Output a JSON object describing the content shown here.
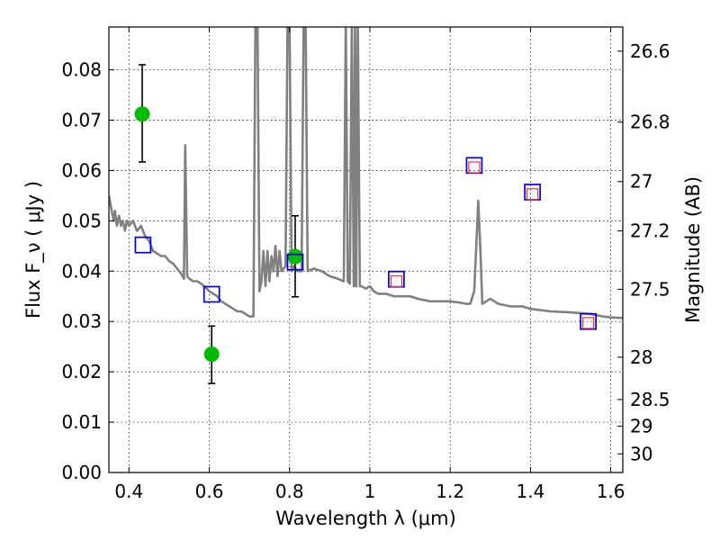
{
  "chart_data": {
    "type": "scatter",
    "xlabel": "Wavelength  λ (μm)",
    "ylabel": "Flux  F_ν  ( μJy )",
    "y2label": "Magnitude (AB)",
    "xlim": [
      0.35,
      1.63
    ],
    "ylim": [
      0.0,
      0.0885
    ],
    "grid": true,
    "x_ticks": [
      {
        "value": 0.4,
        "label": "0.4"
      },
      {
        "value": 0.6,
        "label": "0.6"
      },
      {
        "value": 0.8,
        "label": "0.8"
      },
      {
        "value": 1.0,
        "label": "1"
      },
      {
        "value": 1.2,
        "label": "1.2"
      },
      {
        "value": 1.4,
        "label": "1.4"
      },
      {
        "value": 1.6,
        "label": "1.6"
      }
    ],
    "y_ticks": [
      {
        "value": 0.0,
        "label": "0.00"
      },
      {
        "value": 0.01,
        "label": "0.01"
      },
      {
        "value": 0.02,
        "label": "0.02"
      },
      {
        "value": 0.03,
        "label": "0.03"
      },
      {
        "value": 0.04,
        "label": "0.04"
      },
      {
        "value": 0.05,
        "label": "0.05"
      },
      {
        "value": 0.06,
        "label": "0.06"
      },
      {
        "value": 0.07,
        "label": "0.07"
      },
      {
        "value": 0.08,
        "label": "0.08"
      }
    ],
    "y2_ticks": [
      {
        "flux": 0.0837,
        "label": "26.6"
      },
      {
        "flux": 0.0696,
        "label": "26.8"
      },
      {
        "flux": 0.0578,
        "label": "27"
      },
      {
        "flux": 0.048,
        "label": "27.2"
      },
      {
        "flux": 0.0364,
        "label": "27.5"
      },
      {
        "flux": 0.0229,
        "label": "28"
      },
      {
        "flux": 0.0145,
        "label": "28.5"
      },
      {
        "flux": 0.0092,
        "label": "29"
      },
      {
        "flux": 0.0037,
        "label": "30"
      }
    ],
    "spectrum": {
      "color": "#808080",
      "points": [
        [
          0.35,
          0.055
        ],
        [
          0.357,
          0.052
        ],
        [
          0.362,
          0.05
        ],
        [
          0.365,
          0.052
        ],
        [
          0.37,
          0.049
        ],
        [
          0.375,
          0.051
        ],
        [
          0.38,
          0.049
        ],
        [
          0.385,
          0.05
        ],
        [
          0.39,
          0.048
        ],
        [
          0.395,
          0.05
        ],
        [
          0.4,
          0.049
        ],
        [
          0.41,
          0.05
        ],
        [
          0.42,
          0.048
        ],
        [
          0.43,
          0.049
        ],
        [
          0.44,
          0.047
        ],
        [
          0.45,
          0.046
        ],
        [
          0.46,
          0.044
        ],
        [
          0.47,
          0.0435
        ],
        [
          0.48,
          0.043
        ],
        [
          0.49,
          0.043
        ],
        [
          0.5,
          0.042
        ],
        [
          0.51,
          0.0415
        ],
        [
          0.52,
          0.0405
        ],
        [
          0.53,
          0.0395
        ],
        [
          0.537,
          0.0385
        ],
        [
          0.54,
          0.065
        ],
        [
          0.545,
          0.039
        ],
        [
          0.55,
          0.0385
        ],
        [
          0.56,
          0.038
        ],
        [
          0.57,
          0.038
        ],
        [
          0.58,
          0.0375
        ],
        [
          0.59,
          0.0368
        ],
        [
          0.6,
          0.036
        ],
        [
          0.61,
          0.0355
        ],
        [
          0.62,
          0.035
        ],
        [
          0.63,
          0.034
        ],
        [
          0.64,
          0.0335
        ],
        [
          0.65,
          0.033
        ],
        [
          0.66,
          0.0325
        ],
        [
          0.67,
          0.032
        ],
        [
          0.68,
          0.032
        ],
        [
          0.69,
          0.0315
        ],
        [
          0.7,
          0.031
        ],
        [
          0.71,
          0.031
        ],
        [
          0.715,
          0.09
        ],
        [
          0.72,
          0.09
        ],
        [
          0.725,
          0.036
        ],
        [
          0.73,
          0.038
        ],
        [
          0.735,
          0.044
        ],
        [
          0.74,
          0.037
        ],
        [
          0.745,
          0.044
        ],
        [
          0.75,
          0.038
        ],
        [
          0.755,
          0.043
        ],
        [
          0.76,
          0.04
        ],
        [
          0.765,
          0.045
        ],
        [
          0.77,
          0.039
        ],
        [
          0.775,
          0.044
        ],
        [
          0.78,
          0.04
        ],
        [
          0.79,
          0.041
        ],
        [
          0.795,
          0.09
        ],
        [
          0.8,
          0.09
        ],
        [
          0.805,
          0.04
        ],
        [
          0.81,
          0.041
        ],
        [
          0.82,
          0.04
        ],
        [
          0.83,
          0.04
        ],
        [
          0.835,
          0.09
        ],
        [
          0.84,
          0.09
        ],
        [
          0.845,
          0.04
        ],
        [
          0.86,
          0.0405
        ],
        [
          0.88,
          0.04
        ],
        [
          0.9,
          0.039
        ],
        [
          0.92,
          0.0385
        ],
        [
          0.935,
          0.038
        ],
        [
          0.94,
          0.09
        ],
        [
          0.945,
          0.038
        ],
        [
          0.95,
          0.0375
        ],
        [
          0.955,
          0.09
        ],
        [
          0.96,
          0.037
        ],
        [
          0.963,
          0.09
        ],
        [
          0.966,
          0.037
        ],
        [
          0.97,
          0.09
        ],
        [
          0.975,
          0.037
        ],
        [
          0.98,
          0.037
        ],
        [
          0.99,
          0.0365
        ],
        [
          1.0,
          0.037
        ],
        [
          1.01,
          0.036
        ],
        [
          1.02,
          0.0355
        ],
        [
          1.04,
          0.0355
        ],
        [
          1.06,
          0.035
        ],
        [
          1.08,
          0.035
        ],
        [
          1.1,
          0.035
        ],
        [
          1.12,
          0.0345
        ],
        [
          1.15,
          0.034
        ],
        [
          1.18,
          0.034
        ],
        [
          1.2,
          0.034
        ],
        [
          1.22,
          0.0338
        ],
        [
          1.24,
          0.0335
        ],
        [
          1.25,
          0.0335
        ],
        [
          1.26,
          0.036
        ],
        [
          1.265,
          0.045
        ],
        [
          1.27,
          0.054
        ],
        [
          1.275,
          0.045
        ],
        [
          1.28,
          0.0335
        ],
        [
          1.29,
          0.034
        ],
        [
          1.3,
          0.0345
        ],
        [
          1.31,
          0.034
        ],
        [
          1.32,
          0.0335
        ],
        [
          1.35,
          0.033
        ],
        [
          1.38,
          0.033
        ],
        [
          1.4,
          0.0325
        ],
        [
          1.45,
          0.032
        ],
        [
          1.5,
          0.0318
        ],
        [
          1.55,
          0.0315
        ],
        [
          1.58,
          0.031
        ],
        [
          1.6,
          0.0308
        ],
        [
          1.63,
          0.0307
        ]
      ]
    },
    "series": [
      {
        "marker": "circle",
        "color": "#00bb00",
        "points": [
          {
            "x": 0.433,
            "y": 0.0712,
            "err_low": 0.0617,
            "err_high": 0.081
          },
          {
            "x": 0.606,
            "y": 0.0235,
            "err_low": 0.0177,
            "err_high": 0.0291
          },
          {
            "x": 0.814,
            "y": 0.0429,
            "err_low": 0.0349,
            "err_high": 0.051
          }
        ]
      },
      {
        "marker": "square-open",
        "color": "#0000dd",
        "points": [
          {
            "x": 0.435,
            "y": 0.0452
          },
          {
            "x": 0.606,
            "y": 0.0354
          },
          {
            "x": 0.814,
            "y": 0.0418
          },
          {
            "x": 1.066,
            "y": 0.0384
          },
          {
            "x": 1.26,
            "y": 0.061
          },
          {
            "x": 1.405,
            "y": 0.0557
          },
          {
            "x": 1.544,
            "y": 0.03
          }
        ]
      },
      {
        "marker": "square-open-small",
        "color": "#ee3333",
        "points": [
          {
            "x": 1.066,
            "y": 0.038
          },
          {
            "x": 1.26,
            "y": 0.0606
          },
          {
            "x": 1.405,
            "y": 0.0553
          },
          {
            "x": 1.544,
            "y": 0.0297
          }
        ]
      }
    ]
  }
}
